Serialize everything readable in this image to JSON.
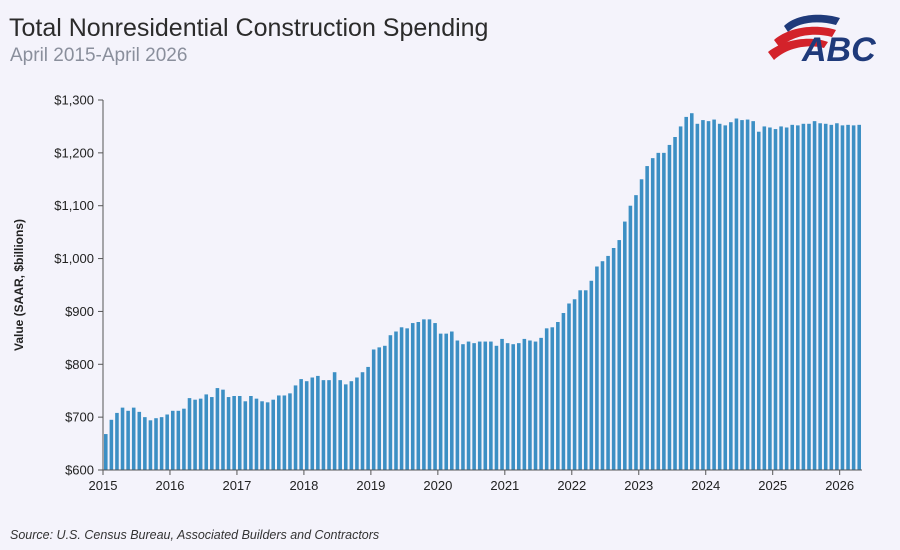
{
  "header": {
    "title": "Total Nonresidential Construction Spending",
    "subtitle": "April 2015-April 2026"
  },
  "logo": {
    "text": "ABC",
    "colors": {
      "blue": "#1f3a7a",
      "red": "#d3222a"
    }
  },
  "source": "Source: U.S. Census Bureau, Associated Builders and Contractors",
  "colors": {
    "bar": "#3c8fc4",
    "bar_edge": "#2a6fa0",
    "axis": "#555555"
  },
  "chart_data": {
    "type": "bar",
    "title": "Total Nonresidential Construction Spending",
    "subtitle": "April 2015-April 2026",
    "ylabel": "Value (SAAR, $billions)",
    "xlabel": "",
    "ylim": [
      600,
      1300
    ],
    "yticks": [
      "$600",
      "$700",
      "$800",
      "$900",
      "$1,000",
      "$1,100",
      "$1,200",
      "$1,300"
    ],
    "ytick_values": [
      600,
      700,
      800,
      900,
      1000,
      1100,
      1200,
      1300
    ],
    "xticks": [
      "2015",
      "2016",
      "2017",
      "2018",
      "2019",
      "2020",
      "2021",
      "2022",
      "2023",
      "2024",
      "2025",
      "2026"
    ],
    "grid": false,
    "start": "2015-01",
    "frequency": "monthly",
    "values": [
      668,
      695,
      708,
      718,
      712,
      718,
      710,
      700,
      694,
      698,
      700,
      705,
      712,
      712,
      716,
      736,
      733,
      735,
      743,
      738,
      755,
      752,
      738,
      740,
      740,
      730,
      740,
      735,
      730,
      728,
      733,
      741,
      741,
      745,
      760,
      772,
      768,
      775,
      778,
      770,
      770,
      785,
      770,
      762,
      768,
      775,
      785,
      795,
      828,
      832,
      835,
      855,
      862,
      870,
      868,
      878,
      880,
      885,
      885,
      878,
      858,
      858,
      862,
      845,
      838,
      843,
      840,
      843,
      843,
      843,
      835,
      848,
      840,
      838,
      840,
      848,
      845,
      843,
      850,
      868,
      870,
      880,
      897,
      915,
      923,
      940,
      940,
      958,
      985,
      995,
      1005,
      1020,
      1035,
      1070,
      1100,
      1120,
      1150,
      1175,
      1190,
      1200,
      1200,
      1215,
      1230,
      1250,
      1268,
      1275,
      1255,
      1262,
      1260,
      1263,
      1255,
      1252,
      1258,
      1265,
      1262,
      1263,
      1260,
      1240,
      1250,
      1248,
      1245,
      1250,
      1248,
      1253,
      1252,
      1255,
      1255,
      1260,
      1256,
      1255,
      1253,
      1256,
      1252,
      1253,
      1252,
      1253
    ]
  }
}
